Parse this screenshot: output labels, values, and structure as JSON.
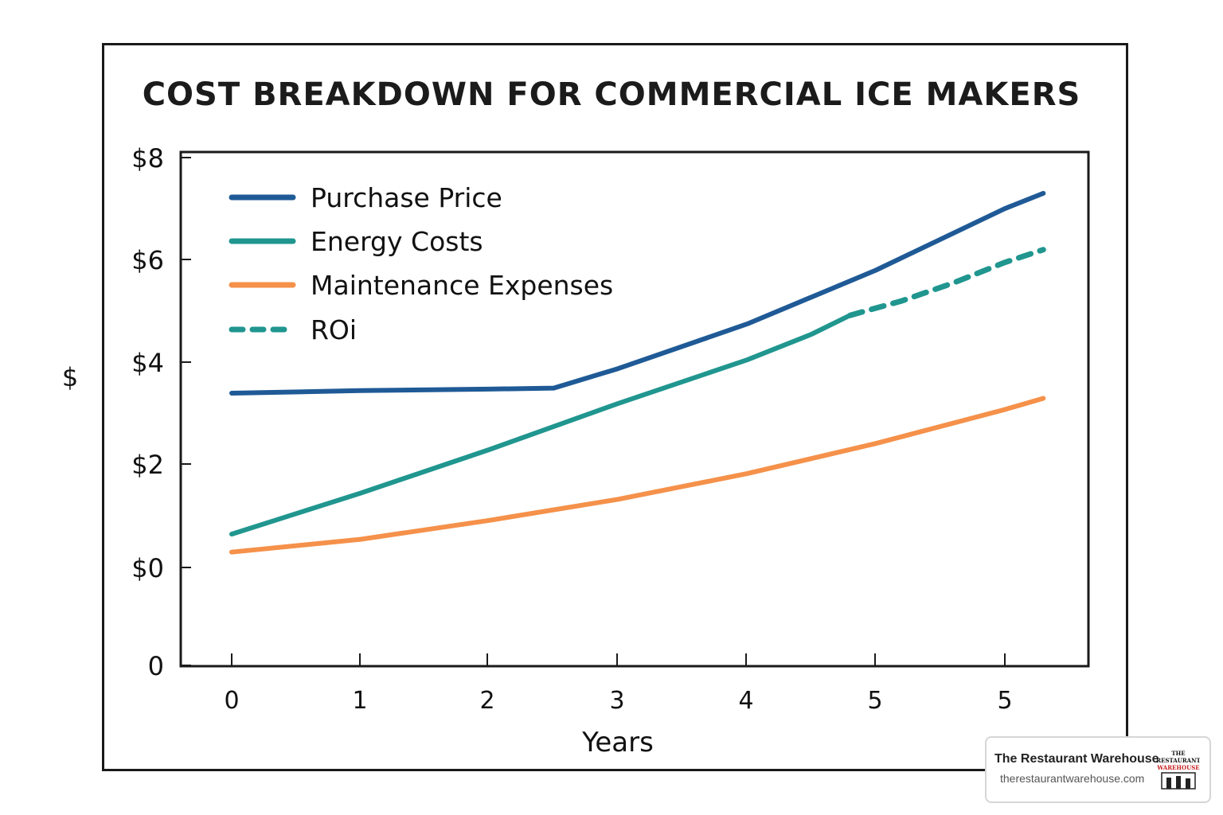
{
  "chart_data": {
    "type": "line",
    "title": "COST BREAKDOWN FOR COMMERCIAL ICE MAKERS",
    "xlabel": "Years",
    "ylabel": "$",
    "x_ticks": [
      "0",
      "1",
      "2",
      "3",
      "4",
      "5",
      "5"
    ],
    "y_ticks": [
      "0",
      "$0",
      "$2",
      "$4",
      "$6",
      "$8"
    ],
    "grid": false,
    "legend_position": "top-left",
    "series": [
      {
        "name": "Purchase Price",
        "color": "#1f5a96",
        "style": "solid",
        "points": [
          [
            0,
            3.4
          ],
          [
            1,
            3.45
          ],
          [
            2,
            3.48
          ],
          [
            2.5,
            3.5
          ],
          [
            3,
            3.88
          ],
          [
            4,
            4.75
          ],
          [
            5,
            5.8
          ],
          [
            6,
            7.0
          ],
          [
            6.3,
            7.3
          ]
        ]
      },
      {
        "name": "Energy Costs",
        "color": "#20968f",
        "style": "solid",
        "points": [
          [
            0,
            0.65
          ],
          [
            1,
            1.45
          ],
          [
            2,
            2.3
          ],
          [
            3,
            3.2
          ],
          [
            4,
            4.05
          ],
          [
            4.5,
            4.55
          ],
          [
            4.8,
            4.92
          ]
        ]
      },
      {
        "name": "Maintenance Expenses",
        "color": "#f5914a",
        "style": "solid",
        "points": [
          [
            0,
            0.3
          ],
          [
            1,
            0.55
          ],
          [
            2,
            0.92
          ],
          [
            3,
            1.33
          ],
          [
            4,
            1.83
          ],
          [
            5,
            2.42
          ],
          [
            6,
            3.08
          ],
          [
            6.3,
            3.3
          ]
        ]
      },
      {
        "name": "ROi",
        "color": "#20968f",
        "style": "dashed",
        "points": [
          [
            4.8,
            4.92
          ],
          [
            5.2,
            5.2
          ],
          [
            5.6,
            5.55
          ],
          [
            6,
            5.95
          ],
          [
            6.3,
            6.2
          ]
        ]
      }
    ]
  },
  "watermark": {
    "name": "The Restaurant Warehouse",
    "url": "therestaurantwarehouse.com",
    "logo_text": [
      "THE",
      "RESTAURANT",
      "WAREHOUSE"
    ]
  }
}
